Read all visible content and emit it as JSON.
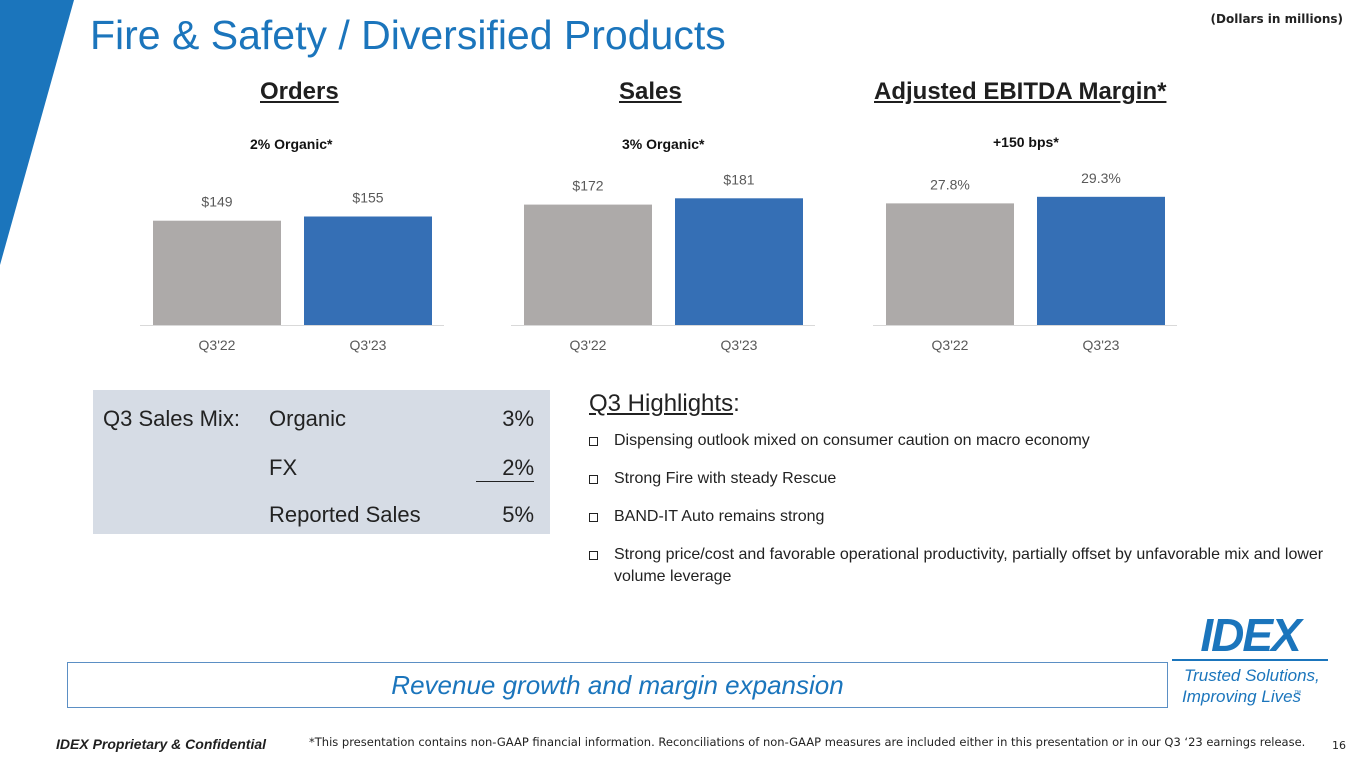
{
  "slide": {
    "title": "Fire & Safety / Diversified Products",
    "units_note": "(Dollars in millions)",
    "page_number": "16"
  },
  "colors": {
    "brand_blue": "#1b75bc",
    "prior_bar": "#adaaa9",
    "current_bar": "#356fb5",
    "mix_box": "#d6dce5"
  },
  "chart_data": [
    {
      "type": "bar",
      "title": "Orders",
      "subtitle": "2% Organic*",
      "categories": [
        "Q3'22",
        "Q3'23"
      ],
      "values": [
        149,
        155
      ],
      "value_labels": [
        "$149",
        "$155"
      ],
      "ylim": [
        0,
        250
      ]
    },
    {
      "type": "bar",
      "title": "Sales",
      "subtitle": "3% Organic*",
      "categories": [
        "Q3'22",
        "Q3'23"
      ],
      "values": [
        172,
        181
      ],
      "value_labels": [
        "$172",
        "$181"
      ],
      "ylim": [
        0,
        250
      ]
    },
    {
      "type": "bar",
      "title": "Adjusted EBITDA Margin*",
      "subtitle": "+150 bps*",
      "categories": [
        "Q3'22",
        "Q3'23"
      ],
      "values": [
        27.8,
        29.3
      ],
      "value_labels": [
        "27.8%",
        "29.3%"
      ],
      "ylim": [
        0,
        40
      ]
    }
  ],
  "sales_mix": {
    "label": "Q3 Sales Mix:",
    "rows": [
      {
        "name": "Organic",
        "value": "3%"
      },
      {
        "name": "FX",
        "value": "2%"
      },
      {
        "name": "Reported Sales",
        "value": "5%"
      }
    ]
  },
  "highlights": {
    "title": "Q3 Highlights",
    "title_suffix": ":",
    "items": [
      "Dispensing outlook mixed on consumer caution on macro economy",
      "Strong Fire with steady Rescue",
      "BAND-IT Auto remains strong",
      "Strong price/cost and favorable operational productivity, partially offset by unfavorable mix and lower volume leverage"
    ]
  },
  "banner": {
    "text": "Revenue growth and margin expansion"
  },
  "logo": {
    "brand": "IDEX",
    "tagline_line1": "Trusted Solutions,",
    "tagline_line2": "Improving Lives",
    "trademark": "™"
  },
  "footer": {
    "confidential": "IDEX Proprietary & Confidential",
    "footnote": "*This presentation contains non-GAAP financial information. Reconciliations of non-GAAP measures are included either in this presentation or in our Q3 ‘23 earnings release."
  }
}
